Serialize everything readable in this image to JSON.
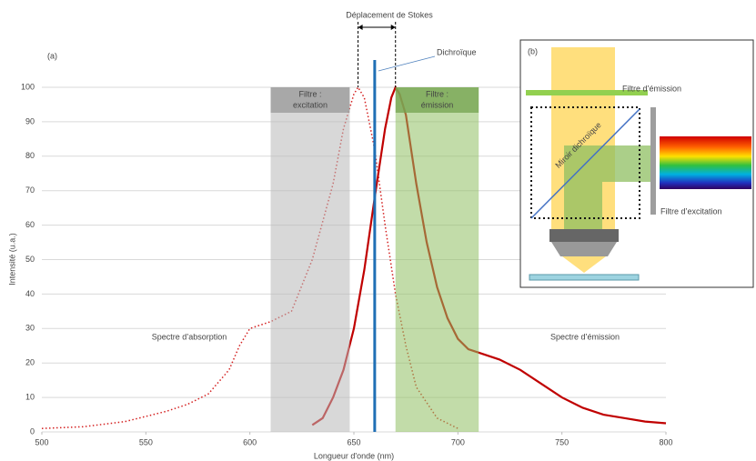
{
  "chart_data": {
    "type": "line",
    "x_label": "Longueur d'onde (nm)",
    "y_label": "Intensité (u.a.)",
    "panel_label": "(a)",
    "xlim": [
      500,
      800
    ],
    "xticks": [
      500,
      550,
      600,
      650,
      700,
      750,
      800
    ],
    "ylim": [
      0,
      100
    ],
    "yticks": [
      0,
      10,
      20,
      30,
      40,
      50,
      60,
      70,
      80,
      90,
      100
    ],
    "grid": true,
    "series": [
      {
        "name": "Spectre d’absorption",
        "color": "#d42020",
        "style": "dotted",
        "x": [
          500,
          520,
          540,
          560,
          570,
          580,
          590,
          595,
          600,
          610,
          620,
          630,
          640,
          645,
          650,
          652,
          655,
          660,
          665,
          670,
          675,
          680,
          690,
          700
        ],
        "values": [
          1,
          1.5,
          3,
          6,
          8,
          11,
          18,
          25,
          30,
          32,
          35,
          50,
          72,
          88,
          98,
          100,
          97,
          82,
          60,
          40,
          25,
          13,
          4,
          1
        ]
      },
      {
        "name": "Spectre d’émission",
        "color": "#c00000",
        "style": "solid",
        "x": [
          630,
          635,
          640,
          645,
          650,
          655,
          660,
          665,
          668,
          670,
          672,
          675,
          680,
          685,
          690,
          695,
          700,
          705,
          710,
          720,
          730,
          740,
          750,
          760,
          770,
          780,
          790,
          800
        ],
        "values": [
          2,
          4,
          10,
          18,
          30,
          47,
          68,
          88,
          97,
          100,
          98,
          92,
          72,
          55,
          42,
          33,
          27,
          24,
          23,
          21,
          18,
          14,
          10,
          7,
          5,
          4,
          3,
          2.5
        ]
      }
    ],
    "bands": [
      {
        "label": [
          "Filtre :",
          "excitation"
        ],
        "x0": 610,
        "x1": 648,
        "color": "#b8b8b8",
        "header_color": "#9e9e9e"
      },
      {
        "label": [
          "Filtre :",
          "émission"
        ],
        "x0": 670,
        "x1": 710,
        "color": "#8fbf62",
        "header_color": "#7aa854"
      }
    ],
    "dichroic": {
      "label": "Dichroïque",
      "x": 660,
      "color": "#1f6fb5"
    },
    "stokes": {
      "label": "Déplacement de Stokes",
      "x0": 652,
      "x1": 670
    }
  },
  "inset": {
    "label": "(b)",
    "mirror": "Miroir dichroïque",
    "emission_filter": "Filtre d’émission",
    "excitation_filter": "Filtre d’excitation"
  }
}
